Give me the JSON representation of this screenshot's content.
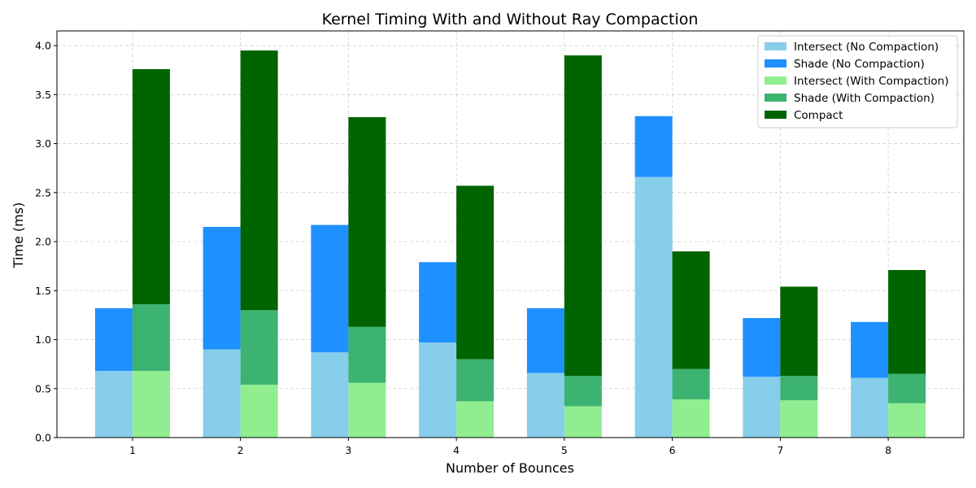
{
  "chart_data": {
    "type": "bar",
    "title": "Kernel Timing With and Without Ray Compaction",
    "xlabel": "Number of Bounces",
    "ylabel": "Time (ms)",
    "categories": [
      "1",
      "2",
      "3",
      "4",
      "5",
      "6",
      "7",
      "8"
    ],
    "ylim": [
      0,
      4.15
    ],
    "yticks": [
      "0.0",
      "0.5",
      "1.0",
      "1.5",
      "2.0",
      "2.5",
      "3.0",
      "3.5",
      "4.0"
    ],
    "grid": true,
    "legend_position": "top-right",
    "stacks": [
      {
        "stack": "No Compaction",
        "series": [
          "Intersect (No Compaction)",
          "Shade (No Compaction)"
        ]
      },
      {
        "stack": "With Compaction",
        "series": [
          "Intersect (With Compaction)",
          "Shade (With Compaction)",
          "Compact"
        ]
      }
    ],
    "series": [
      {
        "name": "Intersect (No Compaction)",
        "color": "#87ceeb",
        "values": [
          0.68,
          0.9,
          0.87,
          0.97,
          0.66,
          2.66,
          0.62,
          0.61
        ]
      },
      {
        "name": "Shade (No Compaction)",
        "color": "#1e90ff",
        "values": [
          0.64,
          1.25,
          1.3,
          0.82,
          0.66,
          0.62,
          0.6,
          0.57
        ]
      },
      {
        "name": "Intersect (With Compaction)",
        "color": "#90ee90",
        "values": [
          0.68,
          0.54,
          0.56,
          0.37,
          0.32,
          0.39,
          0.38,
          0.35
        ]
      },
      {
        "name": "Shade (With Compaction)",
        "color": "#3cb371",
        "values": [
          0.68,
          0.76,
          0.57,
          0.43,
          0.31,
          0.31,
          0.25,
          0.3
        ]
      },
      {
        "name": "Compact",
        "color": "#006400",
        "values": [
          2.4,
          2.65,
          2.14,
          1.77,
          3.27,
          1.2,
          0.91,
          1.06
        ]
      }
    ]
  }
}
